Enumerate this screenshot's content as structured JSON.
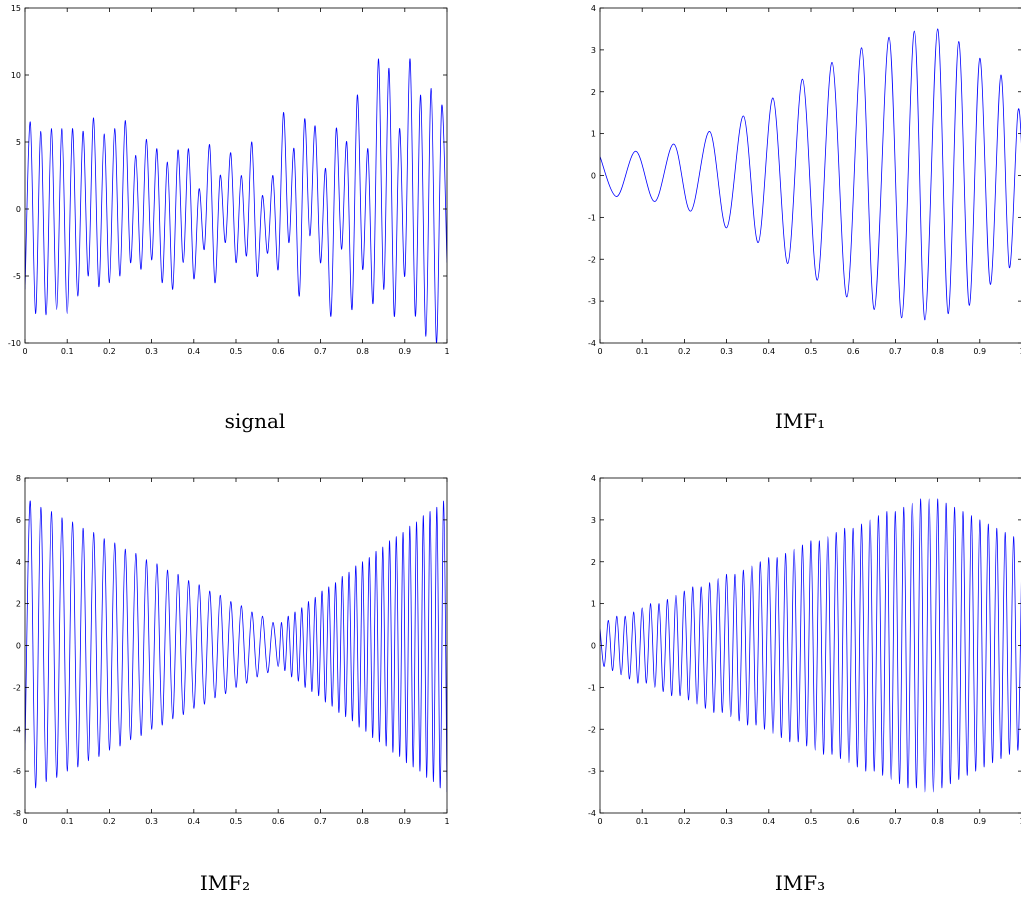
{
  "chart_data": [
    {
      "type": "line",
      "title": "signal",
      "xlim": [
        0,
        1
      ],
      "ylim": [
        -10,
        15
      ],
      "xticks": [
        0,
        0.1,
        0.2,
        0.3,
        0.4,
        0.5,
        0.6,
        0.7,
        0.8,
        0.9,
        1
      ],
      "yticks": [
        -10,
        -5,
        0,
        5,
        10,
        15
      ],
      "x": [
        0,
        0.0125,
        0.025,
        0.0375,
        0.05,
        0.0625,
        0.075,
        0.0875,
        0.1,
        0.1125,
        0.125,
        0.1375,
        0.15,
        0.1625,
        0.175,
        0.1875,
        0.2,
        0.2125,
        0.225,
        0.2375,
        0.25,
        0.2625,
        0.275,
        0.2875,
        0.3,
        0.3125,
        0.325,
        0.3375,
        0.35,
        0.3625,
        0.375,
        0.3875,
        0.4,
        0.4125,
        0.425,
        0.4375,
        0.45,
        0.4625,
        0.475,
        0.4875,
        0.5,
        0.5125,
        0.525,
        0.5375,
        0.55,
        0.5625,
        0.575,
        0.5875,
        0.6,
        0.6125,
        0.625,
        0.6375,
        0.65,
        0.6625,
        0.675,
        0.6875,
        0.7,
        0.7125,
        0.725,
        0.7375,
        0.75,
        0.7625,
        0.775,
        0.7875,
        0.8,
        0.8125,
        0.825,
        0.8375,
        0.85,
        0.8625,
        0.875,
        0.8875,
        0.9,
        0.9125,
        0.925,
        0.9375,
        0.95,
        0.9625,
        0.975,
        0.9875,
        1
      ],
      "series": [
        {
          "color": "#0000ff",
          "values": [
            -6,
            6.5,
            -7.8,
            5.8,
            -7.9,
            6,
            -7.5,
            6,
            -7.8,
            6,
            -6.5,
            5.8,
            -5,
            6.8,
            -5.8,
            5.6,
            -5.5,
            6,
            -5,
            6.6,
            -4,
            4,
            -4.5,
            5.2,
            -3.8,
            4.5,
            -5.5,
            3.5,
            -6,
            4.4,
            -4,
            4.5,
            -5.2,
            1.5,
            -3,
            4.8,
            -5.5,
            2.5,
            -2.5,
            4.2,
            -4,
            2.5,
            -3.5,
            5,
            -5,
            1,
            -3.3,
            2.5,
            -4.5,
            7.2,
            -2.5,
            4.5,
            -6.5,
            6.7,
            -2,
            6.2,
            -4,
            3,
            -8,
            6,
            -3,
            5,
            -7.5,
            8.5,
            -4.5,
            4.5,
            -7,
            11.2,
            -6,
            10.5,
            -8,
            6,
            -5,
            11.2,
            -8,
            8.5,
            -9.5,
            9,
            -10,
            7.7,
            -4
          ]
        }
      ]
    },
    {
      "type": "line",
      "title": "IMF₁",
      "xlim": [
        0,
        1
      ],
      "ylim": [
        -4,
        4
      ],
      "xticks": [
        0,
        0.1,
        0.2,
        0.3,
        0.4,
        0.5,
        0.6,
        0.7,
        0.8,
        0.9,
        1
      ],
      "yticks": [
        -4,
        -3,
        -2,
        -1,
        0,
        1,
        2,
        3,
        4
      ],
      "x": [
        0,
        0.04,
        0.085,
        0.13,
        0.175,
        0.215,
        0.26,
        0.3,
        0.34,
        0.375,
        0.41,
        0.445,
        0.48,
        0.515,
        0.55,
        0.585,
        0.62,
        0.65,
        0.685,
        0.715,
        0.745,
        0.77,
        0.8,
        0.825,
        0.85,
        0.875,
        0.9,
        0.925,
        0.95,
        0.97,
        0.99,
        1
      ],
      "series": [
        {
          "color": "#0000ff",
          "values": [
            0.45,
            -0.5,
            0.58,
            -0.62,
            0.75,
            -0.85,
            1.05,
            -1.25,
            1.42,
            -1.6,
            1.85,
            -2.1,
            2.3,
            -2.5,
            2.7,
            -2.9,
            3.05,
            -3.2,
            3.3,
            -3.4,
            3.45,
            -3.45,
            3.5,
            -3.3,
            3.2,
            -3.1,
            2.8,
            -2.6,
            2.4,
            -2.2,
            1.5,
            0.5
          ]
        }
      ]
    },
    {
      "type": "line",
      "title": "IMF₂",
      "xlim": [
        0,
        1
      ],
      "ylim": [
        -8,
        8
      ],
      "xticks": [
        0,
        0.1,
        0.2,
        0.3,
        0.4,
        0.5,
        0.6,
        0.7,
        0.8,
        0.9,
        1
      ],
      "yticks": [
        -8,
        -6,
        -4,
        -2,
        0,
        2,
        4,
        6,
        8
      ],
      "x": [
        0,
        0.0125,
        0.025,
        0.0375,
        0.05,
        0.0625,
        0.075,
        0.0875,
        0.1,
        0.1125,
        0.125,
        0.1375,
        0.15,
        0.1625,
        0.175,
        0.1875,
        0.2,
        0.2125,
        0.225,
        0.2375,
        0.25,
        0.2625,
        0.275,
        0.2875,
        0.3,
        0.3125,
        0.325,
        0.3375,
        0.35,
        0.3625,
        0.375,
        0.3875,
        0.4,
        0.4125,
        0.425,
        0.4375,
        0.45,
        0.4625,
        0.475,
        0.4875,
        0.5,
        0.5125,
        0.525,
        0.5375,
        0.55,
        0.5625,
        0.575,
        0.5875,
        0.6,
        0.608,
        0.616,
        0.624,
        0.632,
        0.64,
        0.648,
        0.656,
        0.664,
        0.672,
        0.68,
        0.688,
        0.696,
        0.704,
        0.712,
        0.72,
        0.728,
        0.736,
        0.744,
        0.752,
        0.76,
        0.768,
        0.776,
        0.784,
        0.792,
        0.8,
        0.808,
        0.816,
        0.824,
        0.832,
        0.84,
        0.848,
        0.856,
        0.864,
        0.872,
        0.88,
        0.888,
        0.896,
        0.904,
        0.912,
        0.92,
        0.928,
        0.936,
        0.944,
        0.952,
        0.96,
        0.968,
        0.976,
        0.984,
        0.992,
        1
      ],
      "series": [
        {
          "color": "#0000ff",
          "values": [
            -5,
            6.9,
            -6.8,
            6.6,
            -6.5,
            6.4,
            -6.3,
            6.1,
            -6,
            5.9,
            -5.8,
            5.6,
            -5.5,
            5.4,
            -5.3,
            5.1,
            -5,
            4.9,
            -4.8,
            4.6,
            -4.5,
            4.4,
            -4.3,
            4.1,
            -4,
            3.9,
            -3.8,
            3.6,
            -3.5,
            3.4,
            -3.3,
            3.1,
            -3,
            2.9,
            -2.8,
            2.6,
            -2.5,
            2.4,
            -2.3,
            2.1,
            -2,
            1.9,
            -1.8,
            1.6,
            -1.5,
            1.4,
            -1.3,
            1.1,
            -1,
            1.1,
            -1.2,
            1.4,
            -1.5,
            1.6,
            -1.7,
            1.8,
            -2,
            2.1,
            -2.2,
            2.3,
            -2.4,
            2.6,
            -2.7,
            2.8,
            -2.9,
            3,
            -3.2,
            3.3,
            -3.4,
            3.5,
            -3.6,
            3.8,
            -3.9,
            4,
            -4.1,
            4.2,
            -4.4,
            4.5,
            -4.6,
            4.7,
            -4.8,
            5,
            -5.1,
            5.2,
            -5.3,
            5.4,
            -5.6,
            5.7,
            -5.8,
            5.9,
            -6,
            6.2,
            -6.3,
            6.4,
            -6.5,
            6.6,
            -6.8,
            6.9,
            -7
          ]
        }
      ]
    },
    {
      "type": "line",
      "title": "IMF₃",
      "xlim": [
        0,
        1
      ],
      "ylim": [
        -4,
        4
      ],
      "xticks": [
        0,
        0.1,
        0.2,
        0.3,
        0.4,
        0.5,
        0.6,
        0.7,
        0.8,
        0.9,
        1
      ],
      "yticks": [
        -4,
        -3,
        -2,
        -1,
        0,
        1,
        2,
        3,
        4
      ],
      "x": [
        0,
        0.01,
        0.02,
        0.03,
        0.04,
        0.05,
        0.06,
        0.07,
        0.08,
        0.09,
        0.1,
        0.11,
        0.12,
        0.13,
        0.14,
        0.15,
        0.16,
        0.17,
        0.18,
        0.19,
        0.2,
        0.21,
        0.22,
        0.23,
        0.24,
        0.25,
        0.26,
        0.27,
        0.28,
        0.29,
        0.3,
        0.31,
        0.32,
        0.33,
        0.34,
        0.35,
        0.36,
        0.37,
        0.38,
        0.39,
        0.4,
        0.41,
        0.42,
        0.43,
        0.44,
        0.45,
        0.46,
        0.47,
        0.48,
        0.49,
        0.5,
        0.51,
        0.52,
        0.53,
        0.54,
        0.55,
        0.56,
        0.57,
        0.58,
        0.59,
        0.6,
        0.61,
        0.62,
        0.63,
        0.64,
        0.65,
        0.66,
        0.67,
        0.68,
        0.69,
        0.7,
        0.71,
        0.72,
        0.73,
        0.74,
        0.75,
        0.76,
        0.77,
        0.78,
        0.79,
        0.8,
        0.81,
        0.82,
        0.83,
        0.84,
        0.85,
        0.86,
        0.87,
        0.88,
        0.89,
        0.9,
        0.91,
        0.92,
        0.93,
        0.94,
        0.95,
        0.96,
        0.97,
        0.98,
        0.99,
        1
      ],
      "series": [
        {
          "color": "#0000ff",
          "values": [
            0.4,
            -0.5,
            0.6,
            -0.6,
            0.7,
            -0.7,
            0.7,
            -0.8,
            0.8,
            -0.9,
            0.9,
            -0.9,
            1,
            -1,
            1,
            -1.1,
            1.1,
            -1.2,
            1.2,
            -1.2,
            1.3,
            -1.3,
            1.4,
            -1.4,
            1.4,
            -1.5,
            1.5,
            -1.6,
            1.6,
            -1.6,
            1.7,
            -1.7,
            1.7,
            -1.8,
            1.8,
            -1.9,
            1.9,
            -1.9,
            2,
            -2,
            2.1,
            -2.1,
            2.1,
            -2.2,
            2.2,
            -2.3,
            2.3,
            -2.3,
            2.4,
            -2.4,
            2.5,
            -2.5,
            2.5,
            -2.6,
            2.6,
            -2.6,
            2.7,
            -2.7,
            2.8,
            -2.8,
            2.8,
            -2.9,
            2.9,
            -3,
            3,
            -3,
            3.1,
            -3.1,
            3.2,
            -3.2,
            3.2,
            -3.3,
            3.3,
            -3.4,
            3.4,
            -3.4,
            3.5,
            -3.5,
            3.5,
            -3.5,
            3.5,
            -3.4,
            3.4,
            -3.3,
            3.3,
            -3.2,
            3.2,
            -3.1,
            3.1,
            -3,
            3,
            -2.9,
            2.9,
            -2.8,
            2.8,
            -2.7,
            2.7,
            -2.6,
            2.6,
            -2.5,
            2.4
          ]
        }
      ]
    }
  ]
}
